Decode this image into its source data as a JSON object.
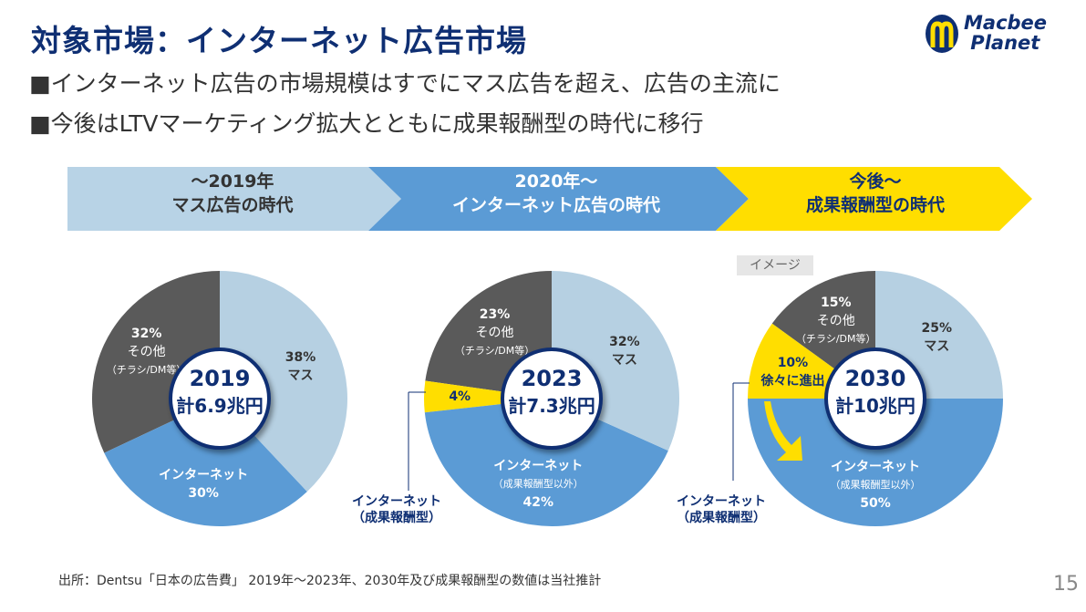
{
  "title": "対象市場：インターネット広告市場",
  "bullets": [
    "■インターネット広告の市場規模はすでにマス広告を超え、広告の主流に",
    "■今後はLTVマーケティング拡大とともに成果報酬型の時代に移行"
  ],
  "logo": "Macbee Planet",
  "eras": [
    {
      "line1": "〜2019年",
      "line2": "マス広告の時代",
      "color": "#b8d3e6"
    },
    {
      "line1": "2020年〜",
      "line2": "インターネット広告の時代",
      "color": "#5b9bd5"
    },
    {
      "line1": "今後〜",
      "line2": "成果報酬型の時代",
      "color": "#ffde00"
    }
  ],
  "image_tag": "イメージ",
  "colors": {
    "mass": "#b6d0e2",
    "internet": "#5b9bd5",
    "performance": "#ffde00",
    "other": "#5a5a5a",
    "navy": "#0f2f73"
  },
  "chart_data": [
    {
      "type": "pie",
      "year": "2019",
      "total": "計6.9兆円",
      "slices": [
        {
          "key": "mass",
          "pct": 38,
          "label": "38%",
          "name": "マス"
        },
        {
          "key": "internet",
          "pct": 30,
          "label": "30%",
          "name": "インターネット"
        },
        {
          "key": "other",
          "pct": 32,
          "label": "32%",
          "name": "その他",
          "sub": "（チラシ/DM等）"
        }
      ]
    },
    {
      "type": "pie",
      "year": "2023",
      "total": "計7.3兆円",
      "slices": [
        {
          "key": "mass",
          "pct": 32,
          "label": "32%",
          "name": "マス"
        },
        {
          "key": "internet",
          "pct": 42,
          "label": "42%",
          "name": "インターネット",
          "sub": "（成果報酬型以外）"
        },
        {
          "key": "performance",
          "pct": 4,
          "label": "4%"
        },
        {
          "key": "other",
          "pct": 23,
          "label": "23%",
          "name": "その他",
          "sub": "（チラシ/DM等）"
        }
      ]
    },
    {
      "type": "pie",
      "year": "2030",
      "total": "計10兆円",
      "slices": [
        {
          "key": "mass",
          "pct": 25,
          "label": "25%",
          "name": "マス"
        },
        {
          "key": "internet",
          "pct": 50,
          "label": "50%",
          "name": "インターネット",
          "sub": "（成果報酬型以外）"
        },
        {
          "key": "performance",
          "pct": 10,
          "label": "10%",
          "name": "徐々に進出"
        },
        {
          "key": "other",
          "pct": 15,
          "label": "15%",
          "name": "その他",
          "sub": "（チラシ/DM等）"
        }
      ]
    }
  ],
  "callout": {
    "line1": "インターネット",
    "line2": "（成果報酬型）"
  },
  "footer": "出所：Dentsu「日本の広告費」 2019年〜2023年、2030年及び成果報酬型の数値は当社推計",
  "page_number": "15"
}
